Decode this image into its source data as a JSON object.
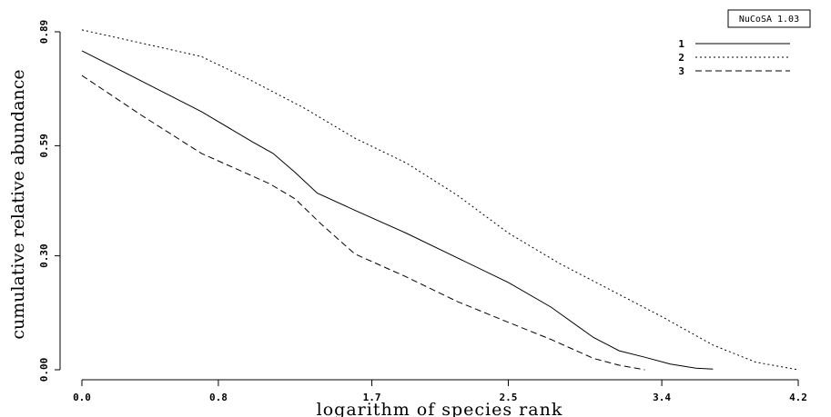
{
  "badge": "NuCoSA 1.03",
  "chart_data": {
    "type": "line",
    "title": "",
    "xlabel": "logarithm of species rank",
    "ylabel": "cumulative relative abundance",
    "xlim": [
      0.0,
      4.2
    ],
    "ylim": [
      0.0,
      0.89
    ],
    "xticks": [
      0.0,
      0.8,
      1.7,
      2.5,
      3.4,
      4.2
    ],
    "xtick_labels": [
      "0.0",
      "0.8",
      "1.7",
      "2.5",
      "3.4",
      "4.2"
    ],
    "yticks": [
      0.0,
      0.3,
      0.59,
      0.89
    ],
    "ytick_labels": [
      "0.00",
      "0.30",
      "0.59",
      "0.89"
    ],
    "grid": false,
    "legend_position": "top-right",
    "series": [
      {
        "name": "1",
        "dash": "solid",
        "x": [
          0.0,
          0.35,
          0.7,
          1.0,
          1.12,
          1.25,
          1.38,
          1.6,
          1.9,
          2.2,
          2.5,
          2.75,
          3.0,
          3.15,
          3.3,
          3.45,
          3.6,
          3.7
        ],
        "y": [
          0.84,
          0.76,
          0.68,
          0.6,
          0.57,
          0.52,
          0.465,
          0.42,
          0.36,
          0.295,
          0.23,
          0.165,
          0.085,
          0.05,
          0.033,
          0.015,
          0.004,
          0.002
        ]
      },
      {
        "name": "2",
        "dash": "dotted",
        "x": [
          0.0,
          0.4,
          0.7,
          1.0,
          1.3,
          1.6,
          1.9,
          2.2,
          2.5,
          2.8,
          3.1,
          3.4,
          3.7,
          3.95,
          4.2
        ],
        "y": [
          0.895,
          0.855,
          0.825,
          0.76,
          0.69,
          0.61,
          0.545,
          0.46,
          0.36,
          0.28,
          0.21,
          0.14,
          0.065,
          0.02,
          0.0
        ]
      },
      {
        "name": "3",
        "dash": "dashed",
        "x": [
          0.0,
          0.35,
          0.7,
          1.0,
          1.1,
          1.25,
          1.4,
          1.6,
          1.9,
          2.2,
          2.5,
          2.75,
          3.0,
          3.15,
          3.3
        ],
        "y": [
          0.775,
          0.67,
          0.57,
          0.51,
          0.49,
          0.45,
          0.385,
          0.305,
          0.245,
          0.18,
          0.125,
          0.08,
          0.03,
          0.012,
          0.0
        ]
      }
    ]
  }
}
